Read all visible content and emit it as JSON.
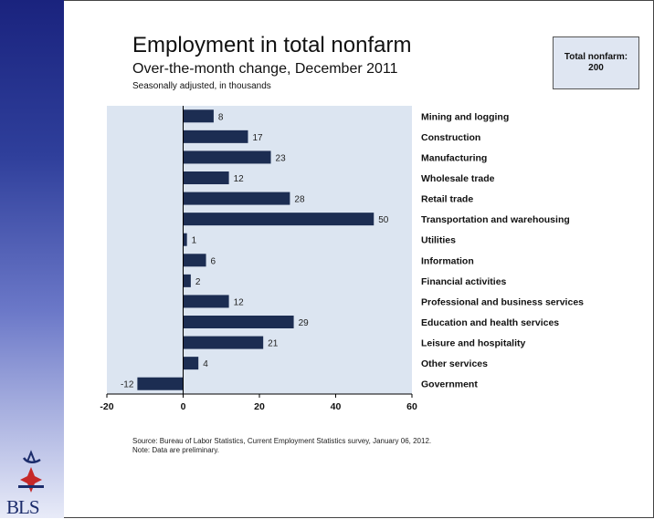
{
  "header": {
    "title": "Employment in total nonfarm",
    "subtitle": "Over-the-month change, December 2011",
    "units_note": "Seasonally adjusted, in thousands"
  },
  "total_box": {
    "label": "Total nonfarm:",
    "value": "200"
  },
  "footer": {
    "source": "Source: Bureau of Labor Statistics, Current Employment Statistics survey, January 06, 2012.",
    "note": "Note: Data are preliminary."
  },
  "logo": {
    "text": "BLS",
    "icon": "bls-star-logo-icon"
  },
  "colors": {
    "bar": "#1c2d52",
    "plot_bg": "#dce5f1",
    "sidebar_top": "#1a237e"
  },
  "chart_data": {
    "type": "bar",
    "orientation": "horizontal",
    "categories": [
      "Mining and logging",
      "Construction",
      "Manufacturing",
      "Wholesale trade",
      "Retail trade",
      "Transportation and warehousing",
      "Utilities",
      "Information",
      "Financial activities",
      "Professional and business services",
      "Education and health services",
      "Leisure and hospitality",
      "Other services",
      "Government"
    ],
    "values": [
      8,
      17,
      23,
      12,
      28,
      50,
      1,
      6,
      2,
      12,
      29,
      21,
      4,
      -12
    ],
    "xlim": [
      -20,
      60
    ],
    "xticks": [
      -20,
      0,
      20,
      40,
      60
    ],
    "grid": false,
    "data_labels": true
  }
}
